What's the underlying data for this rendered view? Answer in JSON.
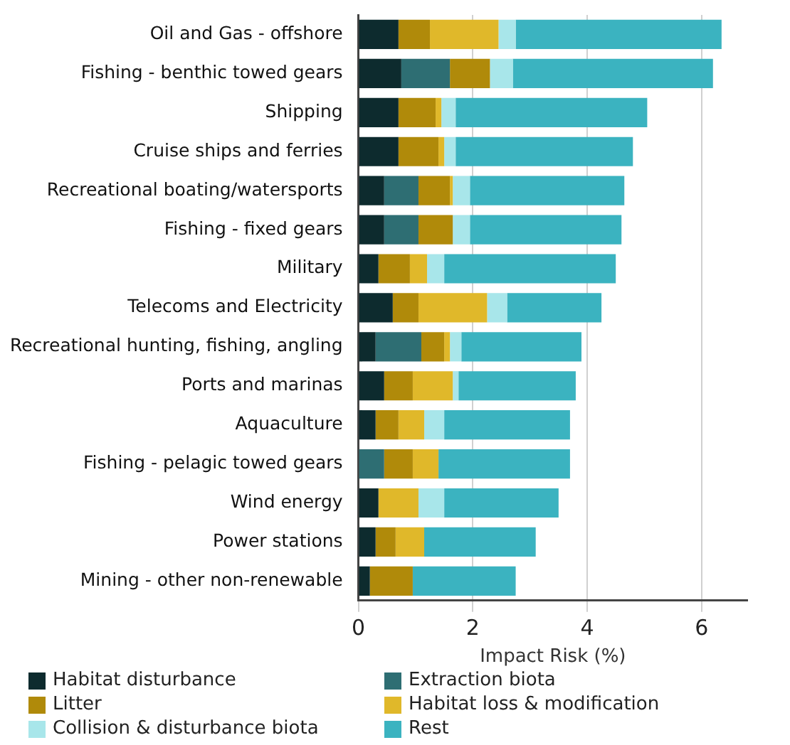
{
  "chart_data": {
    "type": "bar",
    "orientation": "horizontal",
    "stacked": true,
    "xlabel": "Impact Risk (%)",
    "categories": [
      "Oil and Gas - offshore",
      "Fishing - benthic towed gears",
      "Shipping",
      "Cruise ships and ferries",
      "Recreational boating/watersports",
      "Fishing - fixed gears",
      "Military",
      "Telecoms and Electricity",
      "Recreational hunting, fishing, angling",
      "Ports and marinas",
      "Aquaculture",
      "Fishing - pelagic towed gears",
      "Wind energy",
      "Power stations",
      "Mining - other non-renewable"
    ],
    "series": [
      {
        "name": "Habitat disturbance",
        "color": "#0d2b2e",
        "values": [
          0.7,
          0.75,
          0.7,
          0.7,
          0.45,
          0.45,
          0.35,
          0.6,
          0.3,
          0.45,
          0.3,
          0,
          0.35,
          0.3,
          0.2
        ]
      },
      {
        "name": "Extraction biota",
        "color": "#2e6e73",
        "values": [
          0,
          0.85,
          0,
          0,
          0.6,
          0.6,
          0,
          0,
          0.8,
          0,
          0,
          0.45,
          0,
          0,
          0
        ]
      },
      {
        "name": "Litter",
        "color": "#b08a0a",
        "values": [
          0.55,
          0.7,
          0.65,
          0.7,
          0.55,
          0.6,
          0.55,
          0.45,
          0.4,
          0.5,
          0.4,
          0.5,
          0,
          0.35,
          0.75
        ]
      },
      {
        "name": "Habitat loss & modification",
        "color": "#e0b82a",
        "values": [
          1.2,
          0,
          0.1,
          0.1,
          0.05,
          0,
          0.3,
          1.2,
          0.1,
          0.7,
          0.45,
          0.45,
          0.7,
          0.5,
          0
        ]
      },
      {
        "name": "Collision & disturbance biota",
        "color": "#a8e6ea",
        "values": [
          0.3,
          0.4,
          0.25,
          0.2,
          0.3,
          0.3,
          0.3,
          0.35,
          0.2,
          0.1,
          0.35,
          0,
          0.45,
          0,
          0
        ]
      },
      {
        "name": "Rest",
        "color": "#3bb3c0",
        "values": [
          3.6,
          3.5,
          3.35,
          3.1,
          2.7,
          2.65,
          3.0,
          1.65,
          2.1,
          2.05,
          2.2,
          2.3,
          2.0,
          1.95,
          1.8
        ]
      }
    ],
    "xlim": [
      0,
      6.8
    ],
    "xticks": [
      0,
      2,
      4,
      6
    ],
    "grid": "x",
    "legend": "bottom"
  }
}
